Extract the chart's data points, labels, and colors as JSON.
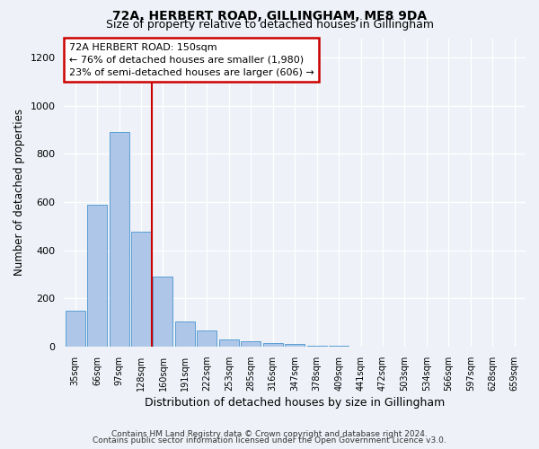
{
  "title1": "72A, HERBERT ROAD, GILLINGHAM, ME8 9DA",
  "title2": "Size of property relative to detached houses in Gillingham",
  "xlabel": "Distribution of detached houses by size in Gillingham",
  "ylabel": "Number of detached properties",
  "bin_labels": [
    "35sqm",
    "66sqm",
    "97sqm",
    "128sqm",
    "160sqm",
    "191sqm",
    "222sqm",
    "253sqm",
    "285sqm",
    "316sqm",
    "347sqm",
    "378sqm",
    "409sqm",
    "441sqm",
    "472sqm",
    "503sqm",
    "534sqm",
    "566sqm",
    "597sqm",
    "628sqm",
    "659sqm"
  ],
  "bar_values": [
    150,
    590,
    890,
    475,
    290,
    105,
    65,
    30,
    20,
    15,
    10,
    4,
    2,
    1,
    1,
    0,
    0,
    0,
    0,
    0,
    0
  ],
  "bar_color": "#aec6e8",
  "bar_edge_color": "#5a9fd4",
  "vline_color": "#cc0000",
  "annotation_text": "72A HERBERT ROAD: 150sqm\n← 76% of detached houses are smaller (1,980)\n23% of semi-detached houses are larger (606) →",
  "annotation_box_color": "#ffffff",
  "annotation_box_edge": "#cc0000",
  "ylim": [
    0,
    1280
  ],
  "yticks": [
    0,
    200,
    400,
    600,
    800,
    1000,
    1200
  ],
  "footer1": "Contains HM Land Registry data © Crown copyright and database right 2024.",
  "footer2": "Contains public sector information licensed under the Open Government Licence v3.0.",
  "bg_color": "#eef2f8"
}
